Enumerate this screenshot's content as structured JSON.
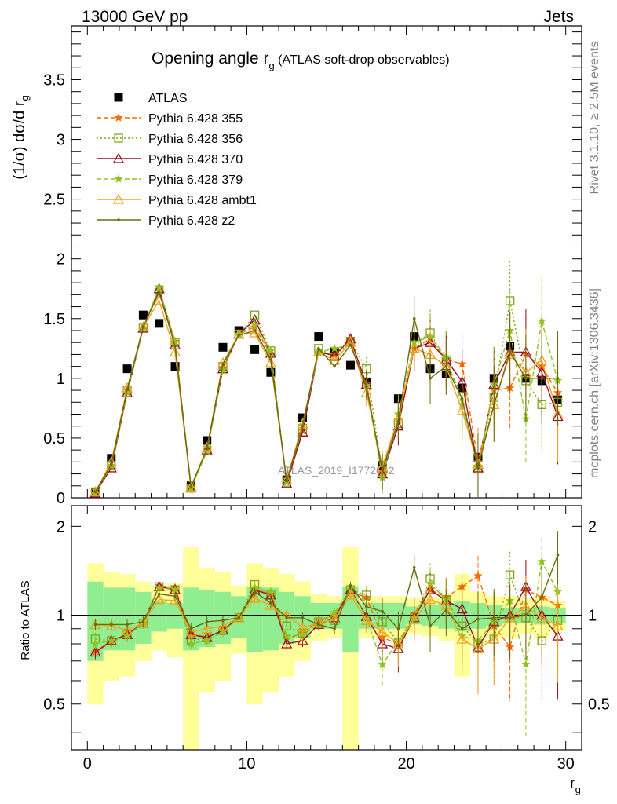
{
  "header": {
    "left": "13000 GeV pp",
    "right": "Jets"
  },
  "side_labels": {
    "rivet": "Rivet 3.1.10, ≥ 2.5M events",
    "mcplots": "mcplots.cern.ch [arXiv:1306.3436]"
  },
  "chart_data": [
    {
      "type": "scatter",
      "title_main": "Opening angle r",
      "title_sub": "g",
      "title_extra": "(ATLAS soft-drop observables)",
      "ylabel": "(1/σ) dσ/d r",
      "ylabel_sub": "g",
      "watermark": "ATLAS_2019_I1772062",
      "xlim": [
        -1,
        31
      ],
      "ylim": [
        0,
        3.95
      ],
      "yticks": [
        "0",
        "0.5",
        "1",
        "1.5",
        "2",
        "2.5",
        "3",
        "3.5"
      ],
      "x": [
        0.5,
        1.5,
        2.5,
        3.5,
        4.5,
        5.5,
        6.5,
        7.5,
        8.5,
        9.5,
        10.5,
        11.5,
        12.5,
        13.5,
        14.5,
        15.5,
        16.5,
        17.5,
        18.5,
        19.5,
        20.5,
        21.5,
        22.5,
        23.5,
        24.5,
        25.5,
        26.5,
        27.5,
        28.5,
        29.5
      ],
      "series": [
        {
          "name": "ATLAS",
          "marker": "square",
          "dash": "",
          "color": "#000000",
          "values": [
            0.05,
            0.33,
            1.08,
            1.53,
            1.46,
            1.1,
            0.1,
            0.48,
            1.26,
            1.4,
            1.24,
            1.05,
            0.15,
            0.67,
            1.35,
            1.22,
            1.11,
            0.97,
            0.27,
            0.83,
            1.35,
            1.08,
            1.04,
            0.92,
            0.34,
            1.0,
            1.27,
            1.0,
            0.98,
            0.82
          ]
        },
        {
          "name": "Pythia 6.428 355",
          "marker": "star",
          "dash": "6,3",
          "color": "#ff6a00",
          "values": [
            0.04,
            0.26,
            0.9,
            1.42,
            1.74,
            1.31,
            0.09,
            0.4,
            1.08,
            1.37,
            1.43,
            1.2,
            0.13,
            0.56,
            1.22,
            1.2,
            1.32,
            0.95,
            0.21,
            0.65,
            1.25,
            1.33,
            1.16,
            1.12,
            0.3,
            0.9,
            0.92,
            1.2,
            1.1,
            0.88
          ]
        },
        {
          "name": "Pythia 6.428 356",
          "marker": "square-open",
          "dash": "2,3",
          "color": "#7fa516",
          "values": [
            0.04,
            0.27,
            0.9,
            1.42,
            1.74,
            1.3,
            0.08,
            0.4,
            1.1,
            1.37,
            1.53,
            1.23,
            0.13,
            0.58,
            1.25,
            1.18,
            1.31,
            1.08,
            0.23,
            0.62,
            1.28,
            1.38,
            1.14,
            0.85,
            0.24,
            0.84,
            1.65,
            0.98,
            0.78,
            0.8
          ]
        },
        {
          "name": "Pythia 6.428 370",
          "marker": "triangle",
          "dash": "",
          "color": "#9a0f25",
          "values": [
            0.04,
            0.25,
            0.88,
            1.42,
            1.75,
            1.28,
            0.09,
            0.4,
            1.08,
            1.37,
            1.49,
            1.21,
            0.12,
            0.55,
            1.22,
            1.19,
            1.33,
            0.95,
            0.2,
            0.6,
            1.25,
            1.3,
            1.16,
            0.97,
            0.25,
            0.95,
            1.22,
            1.22,
            1.05,
            0.68
          ]
        },
        {
          "name": "Pythia 6.428 379",
          "marker": "star",
          "dash": "6,3",
          "color": "#8fc41a",
          "values": [
            0.04,
            0.27,
            0.88,
            1.42,
            1.76,
            1.3,
            0.08,
            0.39,
            1.07,
            1.37,
            1.45,
            1.23,
            0.13,
            0.6,
            1.22,
            1.25,
            1.28,
            0.94,
            0.17,
            0.7,
            1.3,
            1.35,
            1.18,
            0.78,
            0.25,
            0.95,
            1.4,
            0.66,
            1.48,
            0.98
          ]
        },
        {
          "name": "Pythia 6.428 ambt1",
          "marker": "triangle",
          "dash": "",
          "color": "#f0a31e",
          "values": [
            0.05,
            0.3,
            0.92,
            1.43,
            1.65,
            1.22,
            0.09,
            0.42,
            1.13,
            1.37,
            1.38,
            1.13,
            0.15,
            0.62,
            1.22,
            1.15,
            1.3,
            0.88,
            0.26,
            0.67,
            1.25,
            1.2,
            1.1,
            0.73,
            0.28,
            0.78,
            1.2,
            1.05,
            1.15,
            0.7
          ]
        },
        {
          "name": "Pythia 6.428 z2",
          "marker": "dot",
          "dash": "",
          "color": "#6b6b10",
          "values": [
            0.05,
            0.28,
            0.91,
            1.43,
            1.72,
            1.27,
            0.09,
            0.41,
            1.12,
            1.36,
            1.4,
            1.16,
            0.14,
            0.6,
            1.25,
            1.1,
            1.28,
            0.93,
            0.23,
            0.64,
            1.5,
            1.0,
            1.1,
            0.83,
            0.25,
            0.78,
            1.22,
            1.0,
            1.0,
            1.0
          ]
        }
      ]
    },
    {
      "type": "scatter",
      "ylabel": "Ratio to ATLAS",
      "xlabel": "r",
      "xlabel_sub": "g",
      "xlim": [
        -1,
        31
      ],
      "ylog": true,
      "ylim": [
        0.35,
        2.35
      ],
      "xticks": [
        "0",
        "10",
        "20",
        "30"
      ],
      "yticks": [
        "0.5",
        "1",
        "2"
      ],
      "green_band_halfwidth": [
        0.3,
        0.24,
        0.24,
        0.2,
        0.12,
        0.1,
        0.24,
        0.22,
        0.2,
        0.16,
        0.25,
        0.24,
        0.2,
        0.16,
        0.1,
        0.1,
        0.25,
        0.1,
        0.1,
        0.1,
        0.07,
        0.08,
        0.1,
        0.12,
        0.1,
        0.08,
        0.06,
        0.06,
        0.07,
        0.06
      ],
      "yellow_band_halfwidth": [
        0.5,
        0.4,
        0.38,
        0.3,
        0.24,
        0.28,
        0.7,
        0.45,
        0.4,
        0.26,
        0.5,
        0.45,
        0.38,
        0.3,
        0.18,
        0.16,
        0.7,
        0.16,
        0.16,
        0.16,
        0.14,
        0.15,
        0.18,
        0.38,
        0.2,
        0.16,
        0.16,
        0.14,
        0.16,
        0.12
      ],
      "series": [
        {
          "name": "Pythia 6.428 355",
          "marker": "star",
          "dash": "6,3",
          "color": "#ff6a00",
          "values": [
            0.75,
            0.81,
            0.86,
            0.94,
            1.26,
            1.24,
            0.87,
            0.84,
            0.89,
            0.98,
            1.22,
            1.18,
            0.83,
            0.87,
            0.96,
            1.0,
            1.2,
            1.15,
            0.84,
            0.8,
            1.01,
            1.22,
            1.15,
            1.25,
            1.36,
            0.92,
            0.78,
            1.22,
            1.15,
            1.08
          ]
        },
        {
          "name": "Pythia 6.428 356",
          "marker": "square-open",
          "dash": "2,3",
          "color": "#7fa516",
          "values": [
            0.83,
            0.82,
            0.86,
            0.94,
            1.25,
            1.22,
            0.82,
            0.84,
            0.89,
            0.98,
            1.27,
            1.17,
            0.92,
            0.87,
            0.95,
            0.96,
            1.22,
            1.17,
            0.95,
            0.81,
            0.98,
            1.33,
            1.13,
            0.92,
            0.8,
            0.83,
            1.37,
            0.98,
            0.82,
            0.96
          ]
        },
        {
          "name": "Pythia 6.428 370",
          "marker": "triangle",
          "dash": "",
          "color": "#9a0f25",
          "values": [
            0.75,
            0.82,
            0.86,
            0.94,
            1.25,
            1.22,
            0.86,
            0.84,
            0.89,
            0.98,
            1.22,
            1.17,
            0.8,
            0.82,
            0.93,
            0.98,
            1.22,
            0.99,
            0.8,
            0.77,
            0.98,
            1.22,
            1.12,
            1.05,
            0.78,
            0.95,
            1.0,
            1.25,
            1.0,
            0.85
          ]
        },
        {
          "name": "Pythia 6.428 379",
          "marker": "star",
          "dash": "6,3",
          "color": "#8fc41a",
          "values": [
            0.8,
            0.82,
            0.85,
            0.94,
            1.24,
            1.22,
            0.8,
            0.82,
            0.88,
            0.98,
            1.24,
            1.2,
            0.85,
            0.86,
            0.93,
            1.02,
            1.22,
            0.98,
            0.68,
            0.82,
            0.98,
            1.28,
            1.13,
            0.85,
            0.82,
            0.95,
            1.12,
            0.68,
            1.52,
            1.2
          ]
        },
        {
          "name": "Pythia 6.428 ambt1",
          "marker": "triangle",
          "dash": "",
          "color": "#f0a31e",
          "values": [
            0.93,
            0.92,
            0.89,
            0.94,
            1.13,
            1.12,
            0.88,
            0.9,
            0.92,
            0.98,
            1.14,
            1.08,
            1.0,
            0.91,
            0.94,
            0.97,
            1.17,
            0.96,
            0.88,
            0.8,
            0.97,
            1.13,
            1.08,
            0.83,
            0.77,
            0.83,
            0.98,
            1.07,
            0.98,
            0.92
          ]
        },
        {
          "name": "Pythia 6.428 z2",
          "marker": "dot",
          "dash": "",
          "color": "#6b6b10",
          "values": [
            0.93,
            0.93,
            0.93,
            0.95,
            1.18,
            1.16,
            0.9,
            0.95,
            0.96,
            0.98,
            1.2,
            1.1,
            0.98,
            0.98,
            0.93,
            0.9,
            1.26,
            1.07,
            1.03,
            0.9,
            1.45,
            0.92,
            1.04,
            0.9,
            0.97,
            0.98,
            0.98,
            1.0,
            1.15,
            1.6
          ]
        }
      ]
    }
  ]
}
